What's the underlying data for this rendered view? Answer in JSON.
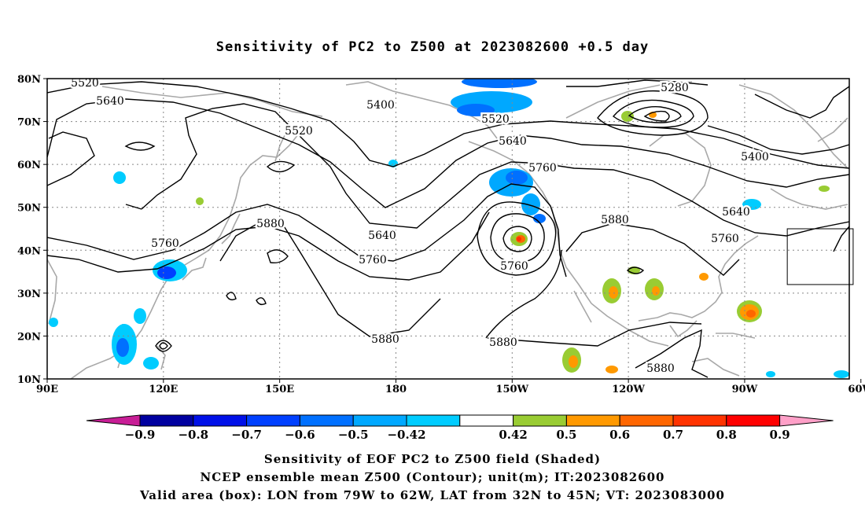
{
  "title": "Sensitivity of PC2 to Z500 at 2023082600 +0.5 day",
  "map": {
    "lon_range": [
      90,
      297
    ],
    "lat_range": [
      10,
      80
    ],
    "lat_labels": [
      "80N",
      "70N",
      "60N",
      "50N",
      "40N",
      "30N",
      "20N",
      "10N"
    ],
    "lon_labels": [
      "90E",
      "120E",
      "150E",
      "180",
      "150W",
      "120W",
      "90W",
      "60W"
    ],
    "valid_box": {
      "lon_min": -79,
      "lon_max": -62,
      "lat_min": 32,
      "lat_max": 45
    },
    "contour_labels": [
      "5520",
      "5640",
      "5400",
      "5520",
      "5280",
      "5520",
      "5640",
      "5760",
      "5400",
      "5640",
      "5760",
      "5880",
      "5640",
      "5760",
      "5760",
      "5880",
      "5760",
      "5880",
      "5880",
      "5880"
    ]
  },
  "colorbar": {
    "labels": [
      "-0.9",
      "-0.8",
      "-0.7",
      "-0.6",
      "-0.5",
      "-0.42",
      "0.42",
      "0.5",
      "0.6",
      "0.7",
      "0.8",
      "0.9"
    ],
    "colors": [
      "#0000a0",
      "#0010e8",
      "#0040ff",
      "#0070ff",
      "#00a8ff",
      "#00ccff",
      "#ffffff",
      "#99cc33",
      "#ff9900",
      "#ff6600",
      "#ff3300",
      "#ff0000"
    ],
    "under_color": "#c81e96",
    "over_color": "#ffa0c8"
  },
  "footer": {
    "line1": "Sensitivity of EOF PC2 to Z500 field (Shaded)",
    "line2": "NCEP ensemble mean Z500 (Contour); unit(m); IT:2023082600",
    "line3": "Valid area (box): LON from 79W to 62W, LAT from 32N to 45N; VT: 2023083000"
  }
}
